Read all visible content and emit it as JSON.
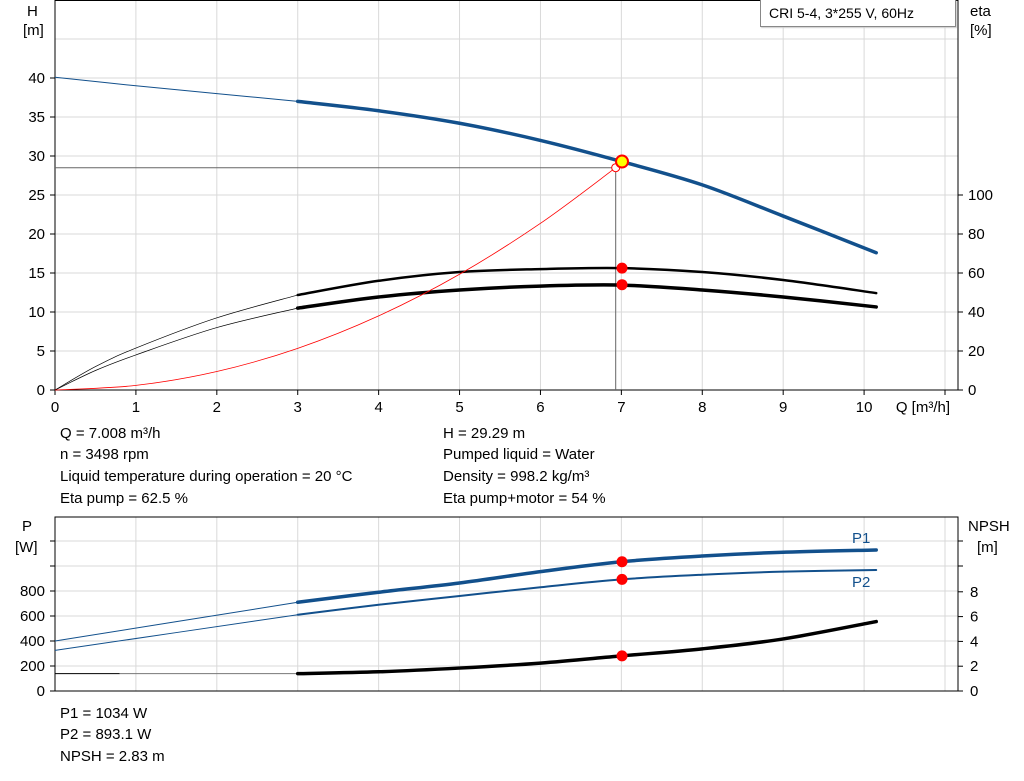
{
  "legend_box": "CRI 5-4, 3*255 V, 60Hz",
  "colors": {
    "head": "#12508c",
    "power": "#12508c",
    "eta": "#000000",
    "system": "#ff0000",
    "marker": "#ff0000",
    "duty_point": "#ffff00",
    "grid": "#d9d9d9"
  },
  "chart_data": [
    {
      "type": "line",
      "xlabel": "Q [m³/h]",
      "ylabel": "H\n[m]",
      "ylabel_lines": [
        "H",
        "[m]"
      ],
      "y2label_lines": [
        "eta",
        "[%]"
      ],
      "xlim": [
        0,
        11
      ],
      "ylim": [
        0,
        50
      ],
      "y2lim": [
        0,
        100
      ],
      "x_ticks": [
        0,
        1,
        2,
        3,
        4,
        5,
        6,
        7,
        8,
        9,
        10
      ],
      "y_ticks": [
        0,
        5,
        10,
        15,
        20,
        25,
        30,
        35,
        40
      ],
      "y2_ticks": [
        0,
        20,
        40,
        60,
        80,
        100
      ],
      "grid": true,
      "series": [
        {
          "id": "head",
          "axis": "H",
          "x": [
            0,
            1,
            2,
            3,
            4,
            5,
            6,
            7,
            8,
            9,
            10.15
          ],
          "y": [
            40.1,
            39.0,
            38.0,
            37.0,
            35.8,
            34.2,
            32.0,
            29.3,
            26.3,
            22.3,
            17.6
          ],
          "thin_until": 3
        },
        {
          "id": "eta_pump",
          "axis": "eta",
          "x": [
            0,
            0.5,
            1,
            2,
            3,
            4,
            5,
            6,
            7,
            8,
            9,
            10.15
          ],
          "y": [
            0,
            12,
            21.5,
            37,
            48.7,
            56,
            60.5,
            62,
            62.5,
            60.5,
            56.4,
            49.7
          ],
          "thin_until": 3
        },
        {
          "id": "eta_pump_motor",
          "axis": "eta",
          "x": [
            0,
            0.5,
            1,
            2,
            3,
            4,
            5,
            6,
            7,
            8,
            9,
            10.15
          ],
          "y": [
            0,
            10,
            18,
            32,
            42,
            47.7,
            51.3,
            53.3,
            53.8,
            51.3,
            47.7,
            42.6
          ],
          "thin_until": 3
        },
        {
          "id": "system_curve",
          "axis": "H",
          "x": [
            0,
            1,
            2,
            3,
            4,
            5,
            6,
            6.93
          ],
          "y": [
            0,
            0.59,
            2.37,
            5.34,
            9.5,
            14.84,
            21.37,
            28.5
          ]
        }
      ],
      "duty_point": {
        "Q": 7.008,
        "H": 29.29
      },
      "crosshair": {
        "Q": 6.93,
        "H": 28.5
      },
      "eta_points": [
        62.5,
        54
      ]
    },
    {
      "type": "line",
      "ylabel_lines": [
        "P",
        "[W]"
      ],
      "y2label_lines": [
        "NPSH",
        "[m]"
      ],
      "xlim": [
        0,
        11
      ],
      "ylim": [
        0,
        1400
      ],
      "y2lim": [
        0,
        11.2
      ],
      "y_ticks": [
        0,
        200,
        400,
        600,
        800
      ],
      "y_gridlines": [
        0,
        200,
        400,
        600,
        800,
        1000,
        1200
      ],
      "y2_ticks": [
        0,
        2,
        4,
        6,
        8
      ],
      "grid": true,
      "series": [
        {
          "id": "P1",
          "name": "P1",
          "axis": "P",
          "x": [
            0,
            3,
            4,
            5,
            6,
            7,
            8,
            9,
            10.15
          ],
          "y": [
            400,
            710,
            790,
            864,
            955,
            1034,
            1080,
            1110,
            1128
          ],
          "thin_until": 3
        },
        {
          "id": "P2",
          "name": "P2",
          "axis": "P",
          "x": [
            0,
            3,
            4,
            5,
            6,
            7,
            8,
            9,
            10.15
          ],
          "y": [
            325,
            610,
            690,
            760,
            830,
            893,
            930,
            955,
            968
          ],
          "thin_until": 3
        },
        {
          "id": "NPSH",
          "axis": "NPSH",
          "x": [
            0,
            3,
            4,
            5,
            6,
            7,
            8,
            9,
            10.15
          ],
          "y": [
            1.4,
            1.4,
            1.55,
            1.85,
            2.25,
            2.83,
            3.4,
            4.2,
            5.6
          ]
        }
      ],
      "points": {
        "P1": 1034,
        "P2": 893.1,
        "NPSH": 2.83
      }
    }
  ],
  "info_left": [
    "Q = 7.008 m³/h",
    "n = 3498 rpm",
    "Liquid temperature during operation = 20 °C",
    "Eta pump = 62.5 %"
  ],
  "info_right": [
    "H = 29.29 m",
    "Pumped liquid = Water",
    "Density = 998.2 kg/m³",
    "Eta pump+motor = 54 %"
  ],
  "info_bottom": [
    "P1 = 1034 W",
    "P2 = 893.1 W",
    "NPSH = 2.83 m"
  ]
}
